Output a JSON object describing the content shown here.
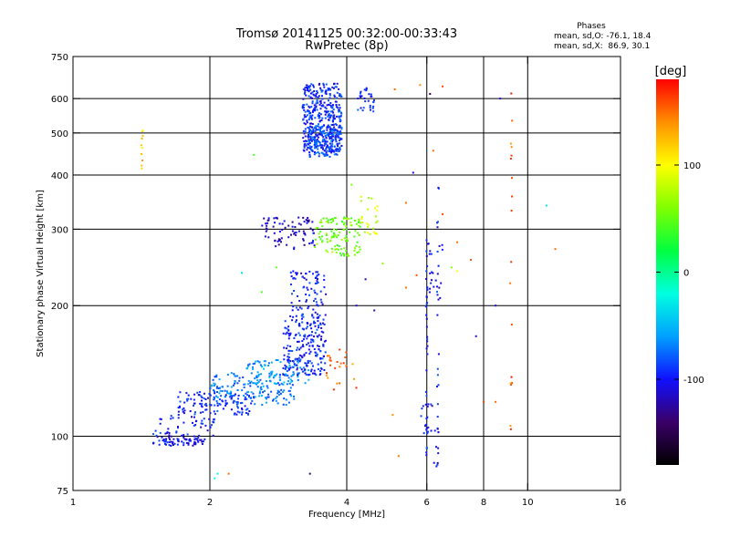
{
  "chart_data": {
    "type": "scatter",
    "title": "Tromsø 20141125 00:32:00-00:33:43",
    "subtitle": "RwPretec (8p)",
    "info": {
      "heading": "Phases",
      "line1": "mean, sd,O: -76.1, 18.4",
      "line2": "mean, sd,X:  86.9, 30.1"
    },
    "xlabel": "Frequency [MHz]",
    "ylabel": "Stationary phase Virtual Height [km]",
    "xscale": "log",
    "yscale": "log",
    "xlim": [
      1,
      16
    ],
    "ylim": [
      75,
      750
    ],
    "xticks": [
      1,
      2,
      4,
      6,
      8,
      10,
      16
    ],
    "yticks": [
      75,
      100,
      200,
      300,
      400,
      500,
      600,
      750
    ],
    "xgrid": [
      2,
      4,
      6,
      8,
      10
    ],
    "ygrid": [
      100,
      200,
      300,
      400,
      500,
      600
    ],
    "colorbar": {
      "label": "[deg]",
      "range": [
        -180,
        180
      ],
      "ticks": [
        100,
        0,
        -100
      ],
      "colors": [
        "#000000",
        "#3a0068",
        "#1010ff",
        "#00a0ff",
        "#00ffe0",
        "#00ff40",
        "#80ff00",
        "#ffff00",
        "#ff9000",
        "#ff0000"
      ]
    },
    "clusters": [
      {
        "x": [
          1.5,
          1.95
        ],
        "y": [
          95,
          100
        ],
        "n": 70,
        "phase": -105
      },
      {
        "x": [
          1.5,
          2.05
        ],
        "y": [
          100,
          112
        ],
        "n": 50,
        "phase": -100
      },
      {
        "x": [
          1.7,
          2.5
        ],
        "y": [
          112,
          127
        ],
        "n": 120,
        "phase": -95
      },
      {
        "x": [
          2.0,
          3.1
        ],
        "y": [
          118,
          140
        ],
        "n": 160,
        "phase": -70
      },
      {
        "x": [
          2.4,
          3.3
        ],
        "y": [
          132,
          150
        ],
        "n": 80,
        "phase": -60
      },
      {
        "x": [
          2.9,
          3.6
        ],
        "y": [
          138,
          185
        ],
        "n": 200,
        "phase": -95
      },
      {
        "x": [
          3.0,
          3.6
        ],
        "y": [
          185,
          240
        ],
        "n": 90,
        "phase": -100
      },
      {
        "x": [
          2.6,
          3.4
        ],
        "y": [
          270,
          320
        ],
        "n": 80,
        "phase": -115
      },
      {
        "x": [
          3.4,
          4.3
        ],
        "y": [
          260,
          320
        ],
        "n": 120,
        "phase": 55
      },
      {
        "x": [
          3.2,
          3.9
        ],
        "y": [
          450,
          650
        ],
        "n": 420,
        "phase": -95
      },
      {
        "x": [
          3.3,
          3.9
        ],
        "y": [
          440,
          520
        ],
        "n": 120,
        "phase": -80
      },
      {
        "x": [
          4.2,
          4.6
        ],
        "y": [
          560,
          640
        ],
        "n": 30,
        "phase": -95
      },
      {
        "x": [
          4.3,
          4.7
        ],
        "y": [
          290,
          360
        ],
        "n": 25,
        "phase": 85
      },
      {
        "x": [
          3.6,
          4.2
        ],
        "y": [
          125,
          160
        ],
        "n": 25,
        "phase": 150
      },
      {
        "x": [
          6.0,
          6.5
        ],
        "y": [
          200,
          280
        ],
        "n": 25,
        "phase": -110
      },
      {
        "x": [
          5.8,
          6.4
        ],
        "y": [
          85,
          120
        ],
        "n": 20,
        "phase": -105
      }
    ],
    "columns": [
      {
        "x": 1.42,
        "y": [
          400,
          530
        ],
        "n": 10,
        "phase": 118
      },
      {
        "x": 6.0,
        "y": [
          90,
          300
        ],
        "n": 34,
        "phase": -100
      },
      {
        "x": 6.35,
        "y": [
          90,
          380
        ],
        "n": 22,
        "phase": -95
      },
      {
        "x": 9.2,
        "y": [
          100,
          650
        ],
        "n": 18,
        "phase": 155
      }
    ],
    "scatter": [
      {
        "x": 2.5,
        "y": 445,
        "phase": 40
      },
      {
        "x": 2.35,
        "y": 238,
        "phase": -35
      },
      {
        "x": 2.05,
        "y": 80,
        "phase": -20
      },
      {
        "x": 2.08,
        "y": 82,
        "phase": -25
      },
      {
        "x": 2.2,
        "y": 82,
        "phase": 150
      },
      {
        "x": 2.6,
        "y": 215,
        "phase": 40
      },
      {
        "x": 3.32,
        "y": 82,
        "phase": -130
      },
      {
        "x": 5.05,
        "y": 112,
        "phase": 140
      },
      {
        "x": 5.2,
        "y": 90,
        "phase": 145
      },
      {
        "x": 5.8,
        "y": 645,
        "phase": 140
      },
      {
        "x": 5.4,
        "y": 345,
        "phase": 150
      },
      {
        "x": 6.5,
        "y": 640,
        "phase": 160
      },
      {
        "x": 6.1,
        "y": 615,
        "phase": -150
      },
      {
        "x": 5.6,
        "y": 405,
        "phase": -110
      },
      {
        "x": 6.2,
        "y": 455,
        "phase": 150
      },
      {
        "x": 6.5,
        "y": 325,
        "phase": 160
      },
      {
        "x": 7.0,
        "y": 280,
        "phase": 150
      },
      {
        "x": 7.5,
        "y": 255,
        "phase": 155
      },
      {
        "x": 7.0,
        "y": 240,
        "phase": 100
      },
      {
        "x": 7.7,
        "y": 170,
        "phase": -110
      },
      {
        "x": 8.5,
        "y": 200,
        "phase": -110
      },
      {
        "x": 8.7,
        "y": 600,
        "phase": -110
      },
      {
        "x": 8.0,
        "y": 120,
        "phase": 160
      },
      {
        "x": 8.5,
        "y": 120,
        "phase": 150
      },
      {
        "x": 11.0,
        "y": 340,
        "phase": -30
      },
      {
        "x": 11.5,
        "y": 270,
        "phase": 150
      },
      {
        "x": 5.4,
        "y": 220,
        "phase": 150
      },
      {
        "x": 5.7,
        "y": 235,
        "phase": 155
      },
      {
        "x": 4.4,
        "y": 230,
        "phase": -120
      },
      {
        "x": 4.6,
        "y": 195,
        "phase": -115
      },
      {
        "x": 4.8,
        "y": 250,
        "phase": 60
      },
      {
        "x": 6.8,
        "y": 245,
        "phase": 60
      },
      {
        "x": 4.2,
        "y": 200,
        "phase": -110
      },
      {
        "x": 4.1,
        "y": 380,
        "phase": 60
      },
      {
        "x": 2.8,
        "y": 245,
        "phase": 50
      },
      {
        "x": 3.05,
        "y": 240,
        "phase": -100
      },
      {
        "x": 5.1,
        "y": 630,
        "phase": 150
      }
    ]
  }
}
